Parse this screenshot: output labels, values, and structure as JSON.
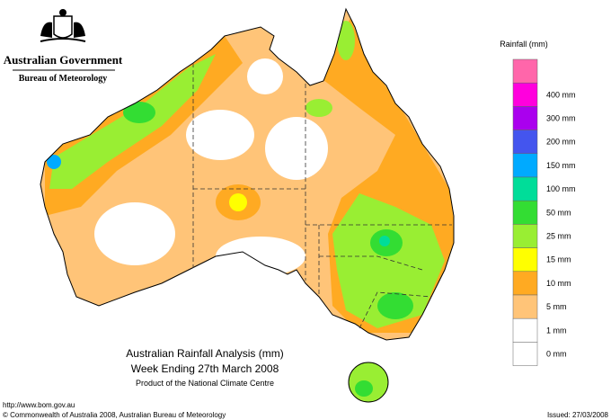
{
  "logo": {
    "line1": "Australian Government",
    "line2": "Bureau of Meteorology"
  },
  "legend": {
    "title": "Rainfall (mm)",
    "top_color": "#ff66aa",
    "items": [
      {
        "label": "400 mm",
        "color": "#ff00dd"
      },
      {
        "label": "300 mm",
        "color": "#aa00ee"
      },
      {
        "label": "200 mm",
        "color": "#4455ee"
      },
      {
        "label": "150 mm",
        "color": "#00aaff"
      },
      {
        "label": "100 mm",
        "color": "#00dd99"
      },
      {
        "label": "50 mm",
        "color": "#33dd33"
      },
      {
        "label": "25 mm",
        "color": "#99ee33"
      },
      {
        "label": "15 mm",
        "color": "#ffff00"
      },
      {
        "label": "10 mm",
        "color": "#ffaa22"
      },
      {
        "label": "5 mm",
        "color": "#ffc478"
      },
      {
        "label": "1 mm",
        "color": "#ffffff"
      },
      {
        "label": "0 mm",
        "color": "#ffffff"
      }
    ]
  },
  "caption": {
    "line1": "Australian Rainfall Analysis (mm)",
    "line2": "Week Ending 27th March 2008",
    "line3": "Product of the National Climate Centre"
  },
  "footer": {
    "url": "http://www.bom.gov.au",
    "copyright": "© Commonwealth of Australia 2008, Australian Bureau of Meteorology",
    "issued": "Issued: 27/03/2008"
  }
}
